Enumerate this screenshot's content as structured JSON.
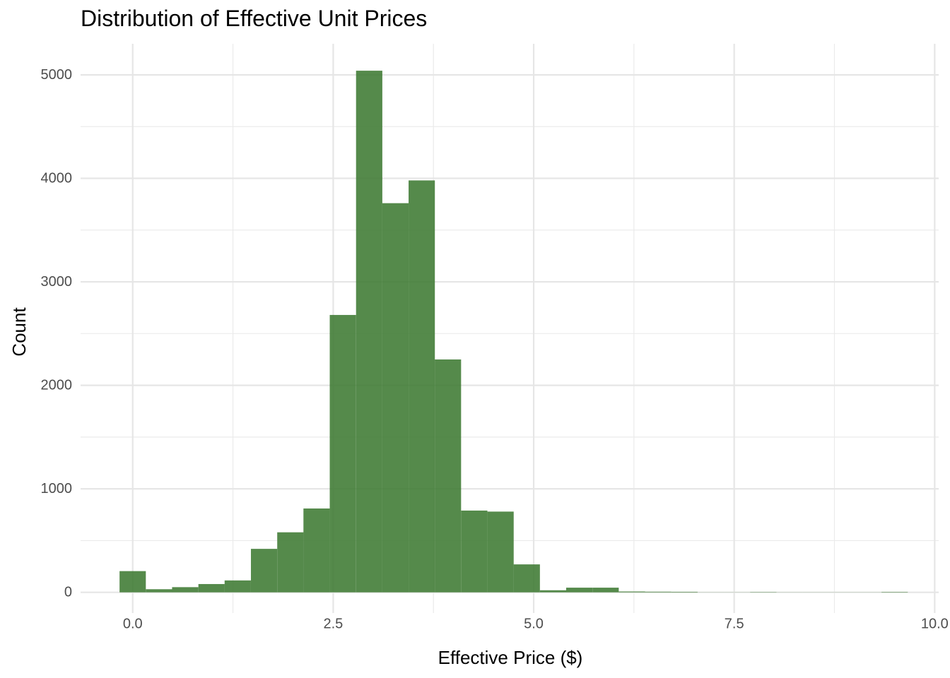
{
  "chart_data": {
    "type": "bar",
    "title": "Distribution of Effective Unit Prices",
    "xlabel": "Effective Price ($)",
    "ylabel": "Count",
    "xlim": [
      -0.65,
      10.05
    ],
    "ylim": [
      -200,
      5300
    ],
    "x_ticks": [
      0.0,
      2.5,
      5.0,
      7.5,
      10.0
    ],
    "x_tick_labels": [
      "0.0",
      "2.5",
      "5.0",
      "7.5",
      "10.0"
    ],
    "y_ticks": [
      0,
      1000,
      2000,
      3000,
      4000,
      5000
    ],
    "y_tick_labels": [
      "0",
      "1000",
      "2000",
      "3000",
      "4000",
      "5000"
    ],
    "grid": true,
    "bar_color": "#3d7a32",
    "bin_width": 0.3276,
    "bin_starts": [
      -0.164,
      0.164,
      0.491,
      0.819,
      1.146,
      1.474,
      1.802,
      2.129,
      2.457,
      2.785,
      3.112,
      3.44,
      3.767,
      4.095,
      4.423,
      4.75,
      5.078,
      5.405,
      5.733,
      6.061,
      6.388,
      6.716,
      7.043,
      7.371,
      7.699,
      8.026,
      8.354,
      8.681,
      9.009,
      9.337
    ],
    "values": [
      205,
      30,
      50,
      80,
      115,
      420,
      580,
      810,
      2680,
      5040,
      3760,
      3980,
      2250,
      790,
      780,
      270,
      20,
      45,
      45,
      8,
      6,
      5,
      1,
      1,
      3,
      1,
      1,
      1,
      1,
      4
    ]
  }
}
